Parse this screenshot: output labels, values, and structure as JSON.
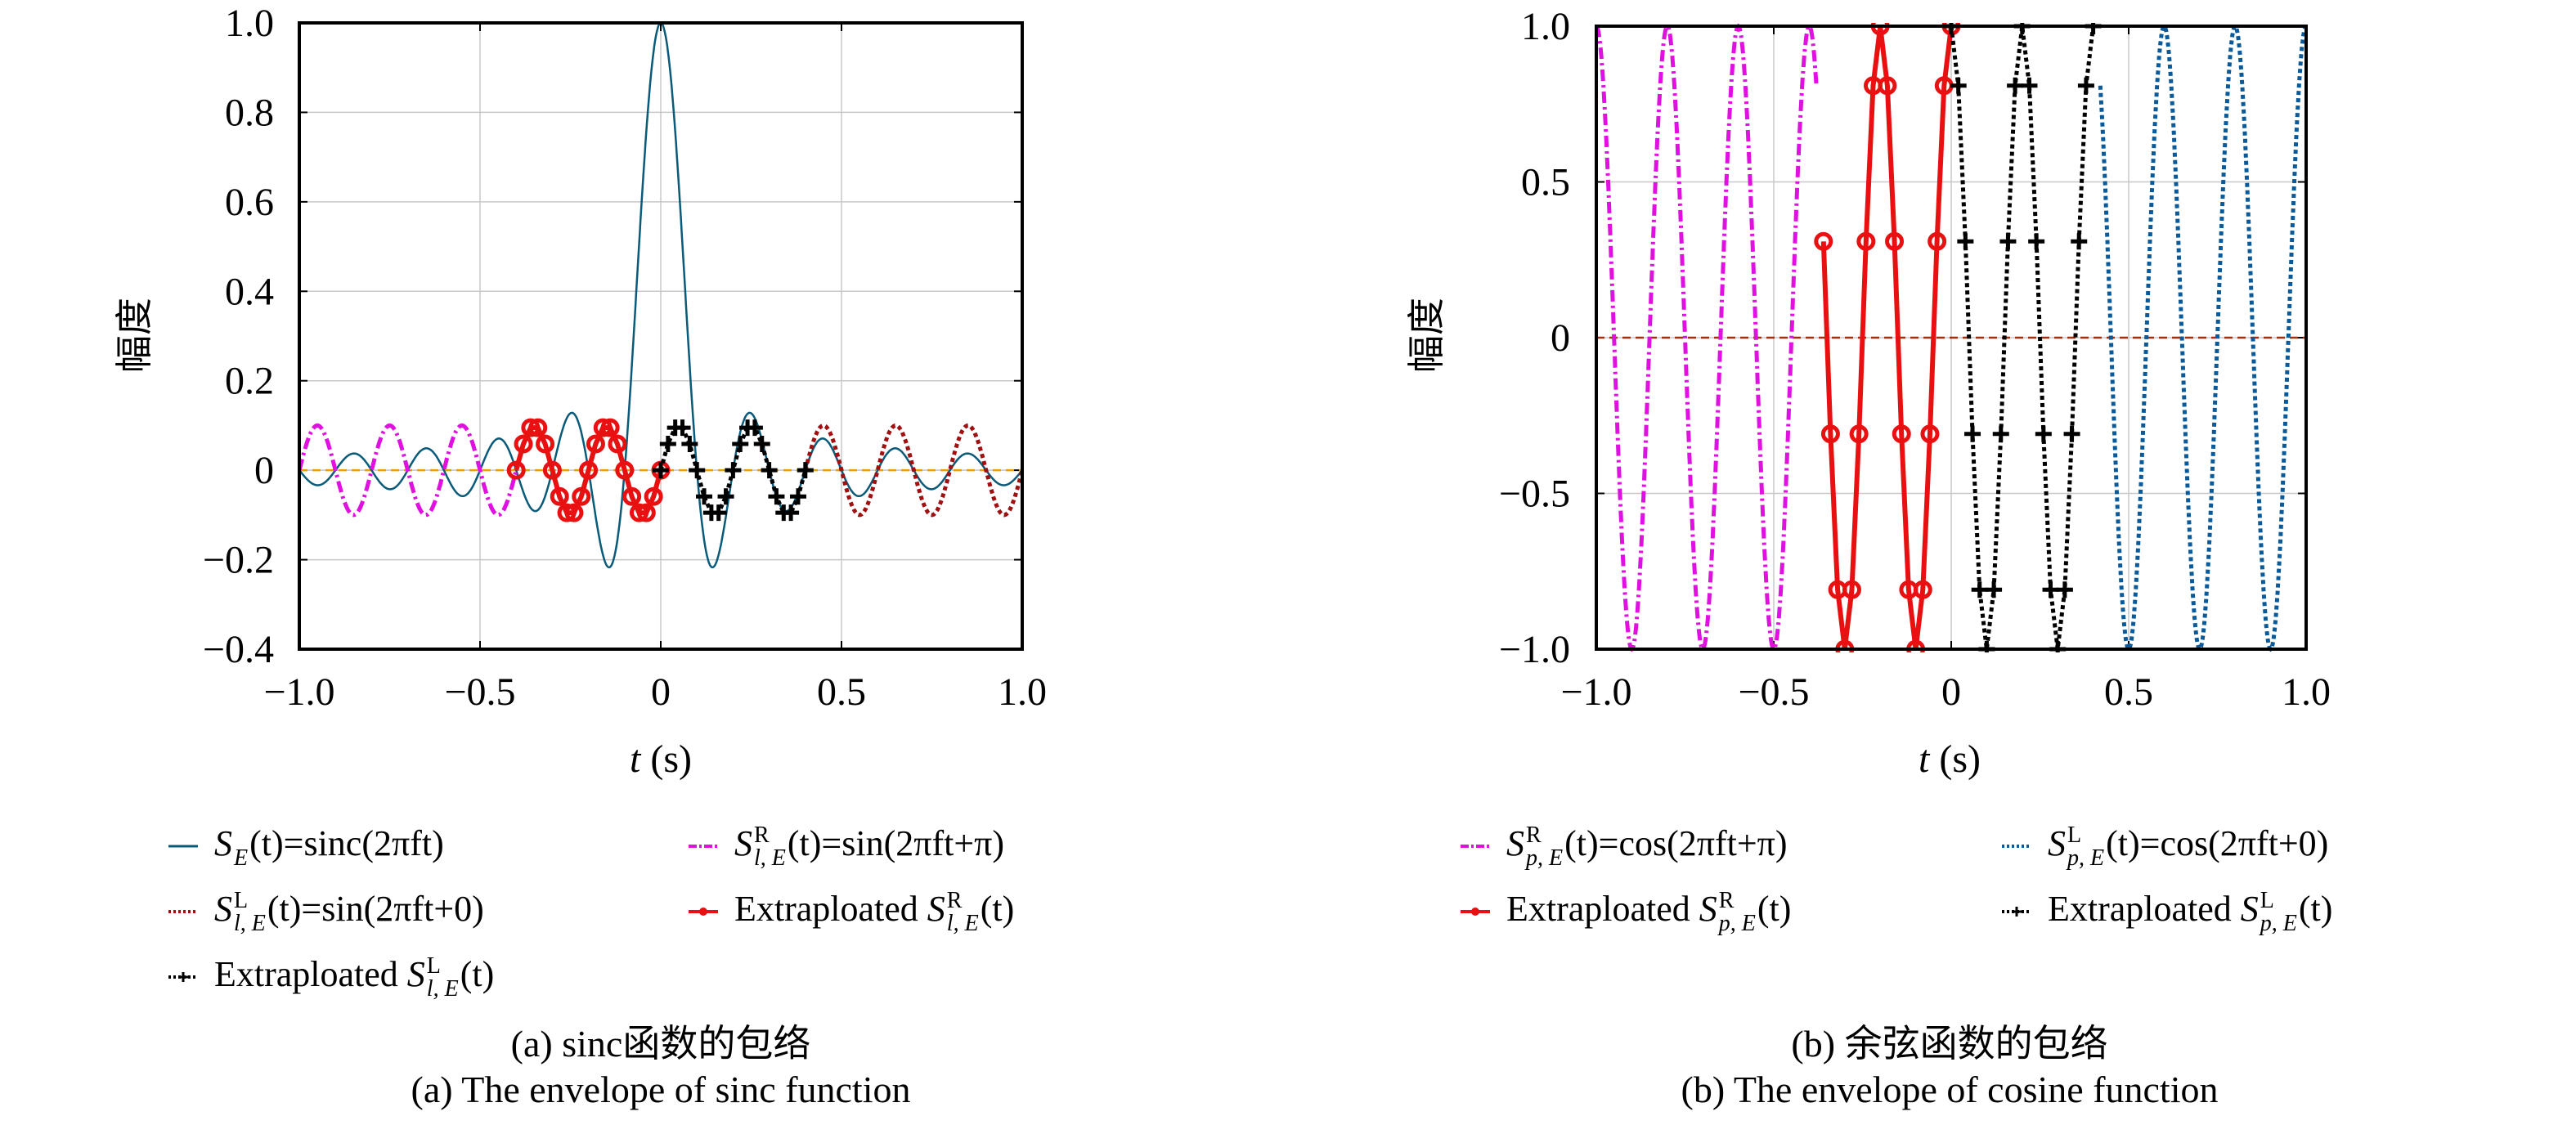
{
  "chart_data": [
    {
      "type": "line",
      "id": "a",
      "title": "",
      "xlabel": "t (s)",
      "xlabel_var": "t",
      "xlabel_unit": "(s)",
      "ylabel": "幅度",
      "xlim": [
        -1.0,
        1.0
      ],
      "ylim": [
        -0.4,
        1.0
      ],
      "xticks": [
        -1.0,
        -0.5,
        0,
        0.5,
        1.0
      ],
      "xtick_labels": [
        "−1.0",
        "−0.5",
        "0",
        "0.5",
        "1.0"
      ],
      "yticks": [
        -0.4,
        -0.2,
        0,
        0.2,
        0.4,
        0.6,
        0.8,
        1.0
      ],
      "ytick_labels": [
        "−0.4",
        "−0.2",
        "0",
        "0.2",
        "0.4",
        "0.6",
        "0.8",
        "1.0"
      ],
      "grid": true,
      "frequency_f": 5,
      "series": [
        {
          "name": "S_E(t)=sinc(2πft)",
          "func": "sinc",
          "amplitude": 1,
          "t_range": [
            -1,
            1
          ],
          "color": "#0a5a7a",
          "style": "solid",
          "marker": "none"
        },
        {
          "name": "S^R_{l,E}(t)=sin(2πft+π)",
          "func": "sin",
          "amplitude": 0.1,
          "phase": 0,
          "t_range": [
            -1,
            -0.4
          ],
          "color": "#e010e0",
          "style": "dashdot",
          "marker": "none"
        },
        {
          "name": "S^L_{l,E}(t)=sin(2πft+0)",
          "func": "sin",
          "amplitude": 0.1,
          "phase": 0,
          "t_range": [
            0.4,
            1
          ],
          "color": "#a01010",
          "style": "dotted",
          "marker": "none"
        },
        {
          "name": "Extraploated S^R_{l,E}(t)",
          "func": "sin",
          "amplitude": 0.1,
          "phase": 0,
          "t_range": [
            -0.4,
            0
          ],
          "step": 0.02,
          "color": "#e81010",
          "style": "solid",
          "marker": "circle"
        },
        {
          "name": "Extraploated S^L_{l,E}(t)",
          "func": "sin",
          "amplitude": 0.1,
          "phase": 0,
          "t_range": [
            0,
            0.4
          ],
          "step": 0.02,
          "color": "#000000",
          "style": "dotted",
          "marker": "plus"
        },
        {
          "name": "zero",
          "func": "zero",
          "amplitude": 0,
          "t_range": [
            -1,
            1
          ],
          "color": "#e8a000",
          "style": "dashed",
          "marker": "none"
        }
      ]
    },
    {
      "type": "line",
      "id": "b",
      "title": "",
      "xlabel": "t (s)",
      "xlabel_var": "t",
      "xlabel_unit": "(s)",
      "ylabel": "幅度",
      "xlim": [
        -1.0,
        1.0
      ],
      "ylim": [
        -1.0,
        1.0
      ],
      "xticks": [
        -1.0,
        -0.5,
        0,
        0.5,
        1.0
      ],
      "xtick_labels": [
        "−1.0",
        "−0.5",
        "0",
        "0.5",
        "1.0"
      ],
      "yticks": [
        -1.0,
        -0.5,
        0,
        0.5,
        1.0
      ],
      "ytick_labels": [
        "−1.0",
        "−0.5",
        "0",
        "0.5",
        "1.0"
      ],
      "grid": true,
      "frequency_f": 5,
      "series": [
        {
          "name": "S^R_{p,E}(t)=cos(2πft+π)",
          "func": "cos",
          "amplitude": 1,
          "phase": 0,
          "t_range": [
            -1,
            -0.38
          ],
          "color": "#e010e0",
          "style": "dashdot",
          "marker": "none"
        },
        {
          "name": "S^L_{p,E}(t)=cos(2πft+0)",
          "func": "cos",
          "amplitude": 1,
          "phase": 0,
          "t_range": [
            0.42,
            1
          ],
          "color": "#0a5a9a",
          "style": "dotted",
          "marker": "none"
        },
        {
          "name": "Extraploated S^R_{p,E}(t)",
          "func": "cos",
          "amplitude": 1,
          "phase": 0,
          "t_range": [
            -0.36,
            0
          ],
          "step": 0.02,
          "color": "#e81010",
          "style": "solid",
          "marker": "circle"
        },
        {
          "name": "Extraploated S^L_{p,E}(t)",
          "func": "cos",
          "amplitude": 1,
          "phase": 0,
          "t_range": [
            0,
            0.4
          ],
          "step": 0.02,
          "color": "#000000",
          "style": "dotted",
          "marker": "plus"
        },
        {
          "name": "zero",
          "func": "zero",
          "amplitude": 0,
          "t_range": [
            -1,
            1
          ],
          "color": "#a03010",
          "style": "dashed",
          "marker": "none"
        }
      ]
    }
  ],
  "legend_a": [
    {
      "prefix": "",
      "sym": "S",
      "sup": "",
      "sub": "E",
      "rest": "(t)=sinc(2πft)"
    },
    {
      "prefix": "",
      "sym": "S",
      "sup": "R",
      "sub": "l, E",
      "rest": "(t)=sin(2πft+π)"
    },
    {
      "prefix": "",
      "sym": "S",
      "sup": "L",
      "sub": "l, E",
      "rest": "(t)=sin(2πft+0)"
    },
    {
      "prefix": "Extraploated ",
      "sym": "S",
      "sup": "R",
      "sub": "l, E",
      "rest": "(t)"
    },
    {
      "prefix": "Extraploated ",
      "sym": "S",
      "sup": "L",
      "sub": "l, E",
      "rest": "(t)"
    }
  ],
  "legend_b": [
    {
      "prefix": "",
      "sym": "S",
      "sup": "R",
      "sub": "p, E",
      "rest": "(t)=cos(2πft+π)"
    },
    {
      "prefix": "",
      "sym": "S",
      "sup": "L",
      "sub": "p, E",
      "rest": "(t)=cos(2πft+0)"
    },
    {
      "prefix": "Extraploated ",
      "sym": "S",
      "sup": "R",
      "sub": "p, E",
      "rest": "(t)"
    },
    {
      "prefix": "Extraploated ",
      "sym": "S",
      "sup": "L",
      "sub": "p, E",
      "rest": "(t)"
    }
  ],
  "captions": {
    "a_cn": "(a) sinc函数的包络",
    "a_en": "(a) The envelope of sinc function",
    "b_cn": "(b) 余弦函数的包络",
    "b_en": "(b) The envelope of cosine function"
  }
}
